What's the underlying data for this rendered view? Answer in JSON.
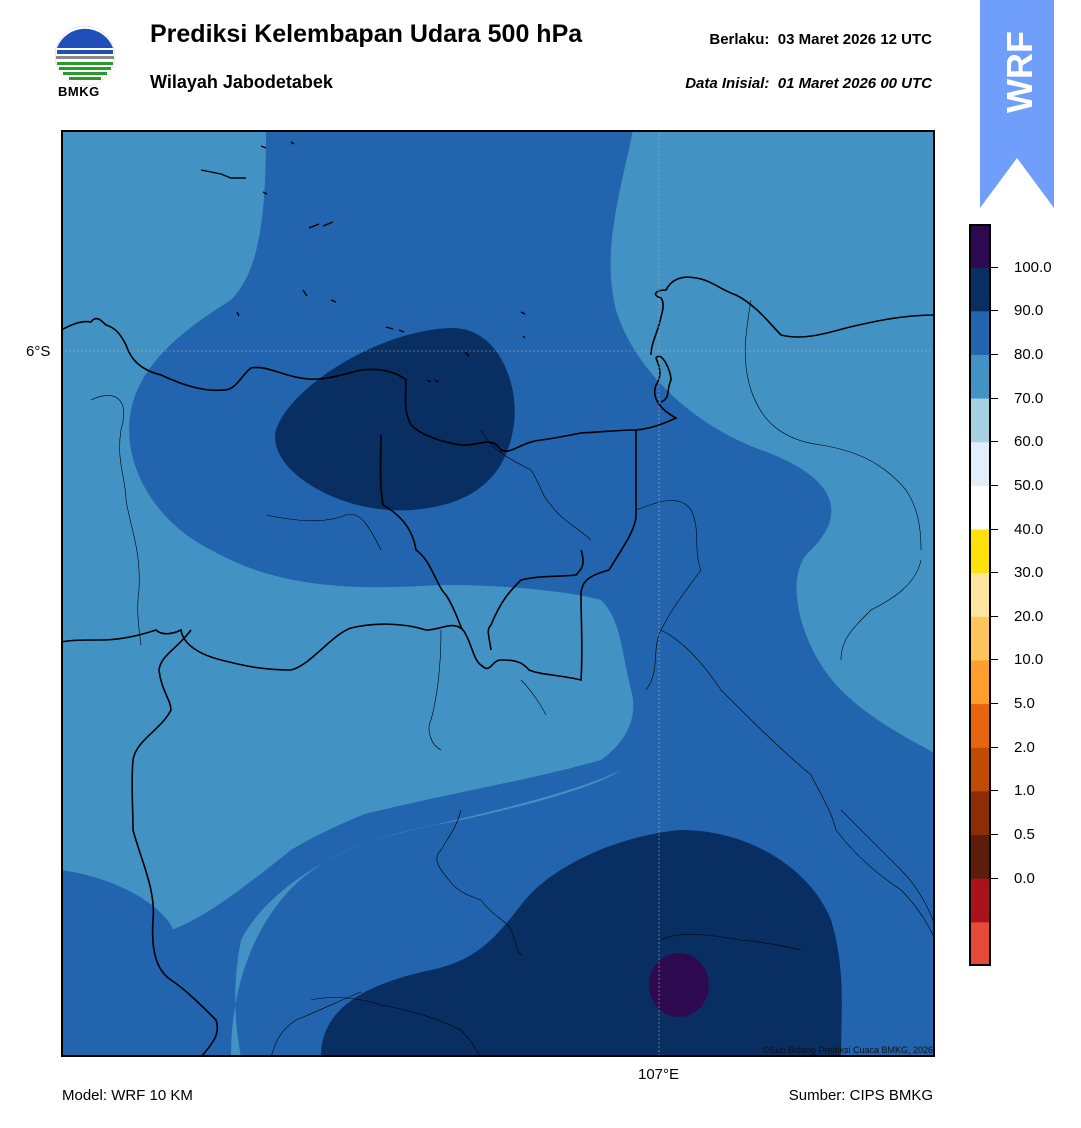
{
  "header": {
    "title": "Prediksi Kelembapan Udara 500 hPa",
    "region": "Wilayah Jabodetabek",
    "valid_label": "Berlaku:",
    "valid_time": "03 Maret 2026 12 UTC",
    "init_label": "Data Inisial:",
    "init_time": "01 Maret 2026 00 UTC"
  },
  "logo": {
    "text": "BMKG",
    "icon": "bmkg-logo-icon"
  },
  "badge": {
    "text": "WRF",
    "color": "#6f9ffb"
  },
  "map": {
    "lat_tick": "6°S",
    "lon_tick": "107°E",
    "copyright": "©Sub Bidang Prediksi Cuaca BMKG, 2026"
  },
  "footer": {
    "model": "Model: WRF 10 KM",
    "source": "Sumber: CIPS BMKG"
  },
  "colorbar": {
    "levels": [
      {
        "label": "100.0",
        "color": "#2d0a4f"
      },
      {
        "label": "90.0",
        "color": "#082e62"
      },
      {
        "label": "80.0",
        "color": "#2264ad"
      },
      {
        "label": "70.0",
        "color": "#4292c4"
      },
      {
        "label": "60.0",
        "color": "#a6d0e4"
      },
      {
        "label": "50.0",
        "color": "#e2eef9"
      },
      {
        "label": "40.0",
        "color": "#ffffff"
      },
      {
        "label": "30.0",
        "color": "#ffe10a"
      },
      {
        "label": "20.0",
        "color": "#ffe69e"
      },
      {
        "label": "10.0",
        "color": "#ffc55c"
      },
      {
        "label": "5.0",
        "color": "#ff9e2f"
      },
      {
        "label": "2.0",
        "color": "#e8650f"
      },
      {
        "label": "1.0",
        "color": "#c04b06"
      },
      {
        "label": "0.5",
        "color": "#8c2d05"
      },
      {
        "label": "0.0",
        "color": "#5c1d0a"
      }
    ],
    "extra_colors": [
      "#a9141c",
      "#e84a3a"
    ]
  }
}
